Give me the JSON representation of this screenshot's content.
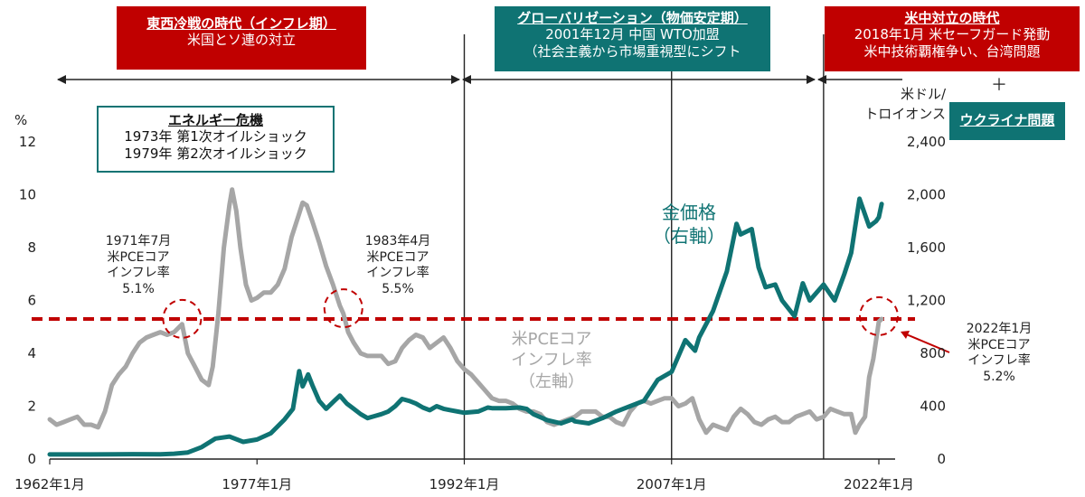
{
  "colors": {
    "gold": "#0f7373",
    "inflation": "#a6a6a6",
    "reference_line": "#c00000",
    "era_red": "#c00000",
    "era_teal": "#0f7373"
  },
  "eras": [
    {
      "title": "東西冷戦の時代（インフレ期）",
      "lines": [
        "米国とソ連の対立"
      ]
    },
    {
      "title": "グローバリゼーション（物価安定期）",
      "lines": [
        "2001年12月 中国 WTO加盟",
        "（社会主義から市場重視型にシフト"
      ]
    },
    {
      "title": "米中対立の時代",
      "lines": [
        "2018年1月 米セーフガード発動",
        "米中技術覇権争い、台湾問題"
      ]
    }
  ],
  "plus_sign": "＋",
  "ukraine_label": "ウクライナ問題",
  "energy_box": {
    "title": "エネルギー危機",
    "lines": [
      "1973年 第1次オイルショック",
      "1979年 第2次オイルショック"
    ]
  },
  "chart_data": {
    "type": "line",
    "x_tick_labels": [
      "1962年1月",
      "1977年1月",
      "1992年1月",
      "2007年1月",
      "2022年1月"
    ],
    "y_left": {
      "unit": "%",
      "min": 0,
      "max": 12,
      "ticks": [
        "0",
        "2",
        "4",
        "6",
        "8",
        "10",
        "12"
      ]
    },
    "y_right": {
      "unit": [
        "米ドル/",
        "トロイオンス"
      ],
      "min": 0,
      "max": 2400,
      "ticks": [
        "0",
        "400",
        "800",
        "1,200",
        "1,600",
        "2,000",
        "2,400"
      ]
    },
    "vertical_lines": [
      1992.0,
      2007.0,
      2018.0
    ],
    "reference_line": {
      "y": 5.3,
      "style": "dashed"
    },
    "series": [
      {
        "name": "米PCEコア インフレ率 （左軸）",
        "label_lines": [
          "米PCEコア",
          "インフレ率",
          "（左軸）"
        ],
        "axis": "left",
        "points": [
          [
            1962.0,
            1.5
          ],
          [
            1962.5,
            1.3
          ],
          [
            1963.0,
            1.4
          ],
          [
            1963.5,
            1.5
          ],
          [
            1964.0,
            1.6
          ],
          [
            1964.5,
            1.3
          ],
          [
            1965.0,
            1.3
          ],
          [
            1965.5,
            1.2
          ],
          [
            1966.0,
            1.8
          ],
          [
            1966.5,
            2.8
          ],
          [
            1967.0,
            3.2
          ],
          [
            1967.5,
            3.5
          ],
          [
            1968.0,
            4.0
          ],
          [
            1968.5,
            4.4
          ],
          [
            1969.0,
            4.6
          ],
          [
            1969.5,
            4.7
          ],
          [
            1970.0,
            4.8
          ],
          [
            1970.5,
            4.7
          ],
          [
            1971.0,
            4.8
          ],
          [
            1971.58,
            5.1
          ],
          [
            1972.0,
            4.0
          ],
          [
            1972.5,
            3.5
          ],
          [
            1973.0,
            3.0
          ],
          [
            1973.5,
            2.8
          ],
          [
            1973.8,
            3.5
          ],
          [
            1974.2,
            5.5
          ],
          [
            1974.6,
            8.0
          ],
          [
            1975.0,
            9.6
          ],
          [
            1975.2,
            10.2
          ],
          [
            1975.5,
            9.4
          ],
          [
            1975.8,
            8.0
          ],
          [
            1976.2,
            6.6
          ],
          [
            1976.6,
            6.0
          ],
          [
            1977.0,
            6.1
          ],
          [
            1977.5,
            6.3
          ],
          [
            1978.0,
            6.3
          ],
          [
            1978.5,
            6.6
          ],
          [
            1979.0,
            7.2
          ],
          [
            1979.5,
            8.4
          ],
          [
            1980.0,
            9.2
          ],
          [
            1980.3,
            9.7
          ],
          [
            1980.6,
            9.6
          ],
          [
            1981.0,
            9.0
          ],
          [
            1981.5,
            8.2
          ],
          [
            1982.0,
            7.3
          ],
          [
            1982.5,
            6.6
          ],
          [
            1983.0,
            5.8
          ],
          [
            1983.25,
            5.5
          ],
          [
            1983.6,
            4.8
          ],
          [
            1984.0,
            4.4
          ],
          [
            1984.5,
            4.0
          ],
          [
            1985.0,
            3.9
          ],
          [
            1985.5,
            3.9
          ],
          [
            1986.0,
            3.9
          ],
          [
            1986.5,
            3.6
          ],
          [
            1987.0,
            3.7
          ],
          [
            1987.5,
            4.2
          ],
          [
            1988.0,
            4.5
          ],
          [
            1988.5,
            4.7
          ],
          [
            1989.0,
            4.6
          ],
          [
            1989.5,
            4.2
          ],
          [
            1990.0,
            4.4
          ],
          [
            1990.5,
            4.6
          ],
          [
            1991.0,
            4.2
          ],
          [
            1991.5,
            3.7
          ],
          [
            1992.0,
            3.4
          ],
          [
            1992.5,
            3.2
          ],
          [
            1993.0,
            2.9
          ],
          [
            1993.5,
            2.6
          ],
          [
            1994.0,
            2.3
          ],
          [
            1994.5,
            2.2
          ],
          [
            1995.0,
            2.2
          ],
          [
            1995.5,
            2.1
          ],
          [
            1996.0,
            1.9
          ],
          [
            1996.5,
            1.8
          ],
          [
            1997.0,
            1.8
          ],
          [
            1997.5,
            1.7
          ],
          [
            1998.0,
            1.4
          ],
          [
            1998.5,
            1.3
          ],
          [
            1999.0,
            1.4
          ],
          [
            1999.5,
            1.5
          ],
          [
            2000.0,
            1.6
          ],
          [
            2000.5,
            1.8
          ],
          [
            2001.0,
            1.8
          ],
          [
            2001.5,
            1.8
          ],
          [
            2002.0,
            1.6
          ],
          [
            2002.5,
            1.6
          ],
          [
            2003.0,
            1.4
          ],
          [
            2003.5,
            1.3
          ],
          [
            2004.0,
            1.8
          ],
          [
            2004.5,
            2.1
          ],
          [
            2005.0,
            2.2
          ],
          [
            2005.5,
            2.1
          ],
          [
            2006.0,
            2.2
          ],
          [
            2006.5,
            2.3
          ],
          [
            2007.0,
            2.3
          ],
          [
            2007.5,
            2.0
          ],
          [
            2008.0,
            2.1
          ],
          [
            2008.5,
            2.3
          ],
          [
            2009.0,
            1.5
          ],
          [
            2009.5,
            1.0
          ],
          [
            2010.0,
            1.3
          ],
          [
            2010.5,
            1.2
          ],
          [
            2011.0,
            1.1
          ],
          [
            2011.5,
            1.6
          ],
          [
            2012.0,
            1.9
          ],
          [
            2012.5,
            1.7
          ],
          [
            2013.0,
            1.4
          ],
          [
            2013.5,
            1.3
          ],
          [
            2014.0,
            1.5
          ],
          [
            2014.5,
            1.6
          ],
          [
            2015.0,
            1.4
          ],
          [
            2015.5,
            1.4
          ],
          [
            2016.0,
            1.6
          ],
          [
            2016.5,
            1.7
          ],
          [
            2017.0,
            1.8
          ],
          [
            2017.5,
            1.5
          ],
          [
            2018.0,
            1.6
          ],
          [
            2018.5,
            1.9
          ],
          [
            2019.0,
            1.8
          ],
          [
            2019.5,
            1.7
          ],
          [
            2020.0,
            1.7
          ],
          [
            2020.3,
            1.0
          ],
          [
            2020.6,
            1.3
          ],
          [
            2021.0,
            1.6
          ],
          [
            2021.3,
            3.1
          ],
          [
            2021.6,
            3.8
          ],
          [
            2022.0,
            5.2
          ],
          [
            2022.2,
            5.3
          ]
        ]
      },
      {
        "name": "金価格 （右軸）",
        "label_lines": [
          "金価格",
          "（右軸）"
        ],
        "axis": "right",
        "points": [
          [
            1962.0,
            35
          ],
          [
            1965.0,
            35
          ],
          [
            1968.0,
            37
          ],
          [
            1970.0,
            36
          ],
          [
            1971.0,
            40
          ],
          [
            1972.0,
            50
          ],
          [
            1973.0,
            90
          ],
          [
            1974.0,
            155
          ],
          [
            1975.0,
            170
          ],
          [
            1976.0,
            130
          ],
          [
            1977.0,
            148
          ],
          [
            1978.0,
            195
          ],
          [
            1979.0,
            300
          ],
          [
            1979.6,
            380
          ],
          [
            1980.05,
            665
          ],
          [
            1980.3,
            550
          ],
          [
            1980.7,
            640
          ],
          [
            1981.0,
            560
          ],
          [
            1981.5,
            440
          ],
          [
            1982.0,
            380
          ],
          [
            1982.6,
            440
          ],
          [
            1983.0,
            480
          ],
          [
            1983.5,
            420
          ],
          [
            1984.0,
            380
          ],
          [
            1984.5,
            340
          ],
          [
            1985.0,
            310
          ],
          [
            1985.5,
            325
          ],
          [
            1986.0,
            340
          ],
          [
            1986.5,
            360
          ],
          [
            1987.0,
            400
          ],
          [
            1987.5,
            455
          ],
          [
            1988.0,
            440
          ],
          [
            1988.5,
            420
          ],
          [
            1989.0,
            390
          ],
          [
            1989.5,
            370
          ],
          [
            1990.0,
            400
          ],
          [
            1990.5,
            380
          ],
          [
            1991.0,
            370
          ],
          [
            1992.0,
            350
          ],
          [
            1993.0,
            360
          ],
          [
            1993.7,
            390
          ],
          [
            1994.0,
            385
          ],
          [
            1995.0,
            385
          ],
          [
            1996.0,
            390
          ],
          [
            1996.5,
            380
          ],
          [
            1997.0,
            340
          ],
          [
            1998.0,
            295
          ],
          [
            1999.0,
            270
          ],
          [
            1999.8,
            300
          ],
          [
            2000.0,
            285
          ],
          [
            2001.0,
            270
          ],
          [
            2002.0,
            310
          ],
          [
            2003.0,
            360
          ],
          [
            2004.0,
            400
          ],
          [
            2005.0,
            440
          ],
          [
            2006.0,
            600
          ],
          [
            2007.0,
            660
          ],
          [
            2008.0,
            900
          ],
          [
            2008.7,
            820
          ],
          [
            2009.0,
            920
          ],
          [
            2010.0,
            1120
          ],
          [
            2011.0,
            1420
          ],
          [
            2011.7,
            1780
          ],
          [
            2012.0,
            1700
          ],
          [
            2012.8,
            1740
          ],
          [
            2013.3,
            1450
          ],
          [
            2013.8,
            1300
          ],
          [
            2014.5,
            1320
          ],
          [
            2015.0,
            1200
          ],
          [
            2015.9,
            1080
          ],
          [
            2016.5,
            1330
          ],
          [
            2017.0,
            1200
          ],
          [
            2018.0,
            1320
          ],
          [
            2018.8,
            1200
          ],
          [
            2019.5,
            1400
          ],
          [
            2020.0,
            1560
          ],
          [
            2020.6,
            1970
          ],
          [
            2021.0,
            1850
          ],
          [
            2021.3,
            1760
          ],
          [
            2021.8,
            1800
          ],
          [
            2022.0,
            1830
          ],
          [
            2022.2,
            1930
          ]
        ]
      }
    ],
    "annotations": [
      {
        "lines": [
          "1971年7月",
          "米PCEコア",
          "インフレ率",
          "5.1%"
        ],
        "x": 1971.58,
        "y": 5.1
      },
      {
        "lines": [
          "1983年4月",
          "米PCEコア",
          "インフレ率",
          "5.5%"
        ],
        "x": 1983.25,
        "y": 5.5
      },
      {
        "lines": [
          "2022年1月",
          "米PCEコア",
          "インフレ率",
          "5.2%"
        ],
        "x": 2022.0,
        "y": 5.2
      }
    ]
  }
}
